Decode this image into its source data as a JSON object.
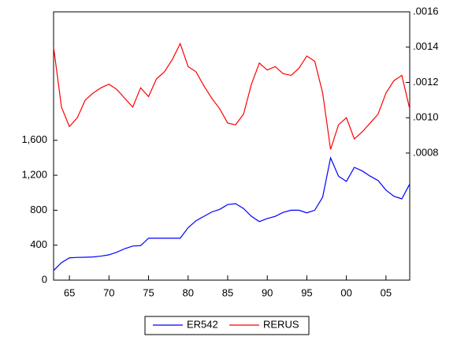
{
  "chart_data": {
    "type": "line",
    "x": [
      1963,
      1964,
      1965,
      1966,
      1967,
      1968,
      1969,
      1970,
      1971,
      1972,
      1973,
      1974,
      1975,
      1976,
      1977,
      1978,
      1979,
      1980,
      1981,
      1982,
      1983,
      1984,
      1985,
      1986,
      1987,
      1988,
      1989,
      1990,
      1991,
      1992,
      1993,
      1994,
      1995,
      1996,
      1997,
      1998,
      1999,
      2000,
      2001,
      2002,
      2003,
      2004,
      2005,
      2006,
      2007,
      2008
    ],
    "xlim": [
      1963,
      2008
    ],
    "xticks": [
      {
        "value": 1965,
        "label": "65"
      },
      {
        "value": 1970,
        "label": "70"
      },
      {
        "value": 1975,
        "label": "75"
      },
      {
        "value": 1980,
        "label": "80"
      },
      {
        "value": 1985,
        "label": "85"
      },
      {
        "value": 1990,
        "label": "90"
      },
      {
        "value": 1995,
        "label": "95"
      },
      {
        "value": 2000,
        "label": "00"
      },
      {
        "value": 2005,
        "label": "05"
      }
    ],
    "ylim": [
      0,
      3070
    ],
    "yticks": [
      0,
      400,
      800,
      {
        "value": 1200,
        "label": "1,200"
      },
      {
        "value": 1600,
        "label": "1,600"
      }
    ],
    "y2lim": [
      8e-05,
      0.0016
    ],
    "y2ticks": [
      {
        "value": 0.0008,
        "label": ".0008"
      },
      {
        "value": 0.001,
        "label": ".0010"
      },
      {
        "value": 0.0012,
        "label": ".0012"
      },
      {
        "value": 0.0014,
        "label": ".0014"
      },
      {
        "value": 0.0016,
        "label": ".0016"
      }
    ],
    "series": [
      {
        "name": "ER542",
        "color": "#0000ff",
        "values": [
          110,
          200,
          255,
          260,
          262,
          265,
          275,
          290,
          320,
          360,
          390,
          395,
          480,
          480,
          480,
          480,
          480,
          600,
          680,
          730,
          780,
          810,
          865,
          875,
          820,
          730,
          670,
          705,
          730,
          775,
          800,
          800,
          770,
          800,
          950,
          1400,
          1190,
          1130,
          1290,
          1250,
          1190,
          1140,
          1030,
          960,
          930,
          1100
        ]
      },
      {
        "name": "RERUS",
        "color": "#ff0000",
        "axis": "y2",
        "values": [
          0.0014,
          0.00106,
          0.00095,
          0.001,
          0.0011,
          0.00114,
          0.00117,
          0.00119,
          0.00116,
          0.00111,
          0.00106,
          0.00117,
          0.00112,
          0.00122,
          0.00126,
          0.00133,
          0.00142,
          0.00129,
          0.00126,
          0.00118,
          0.00111,
          0.00105,
          0.00097,
          0.00096,
          0.00102,
          0.00119,
          0.00131,
          0.00127,
          0.00129,
          0.00125,
          0.00124,
          0.00128,
          0.00135,
          0.00132,
          0.00114,
          0.00082,
          0.00096,
          0.001,
          0.00088,
          0.00092,
          0.00097,
          0.00102,
          0.00114,
          0.00121,
          0.00124,
          0.00105
        ]
      }
    ]
  }
}
